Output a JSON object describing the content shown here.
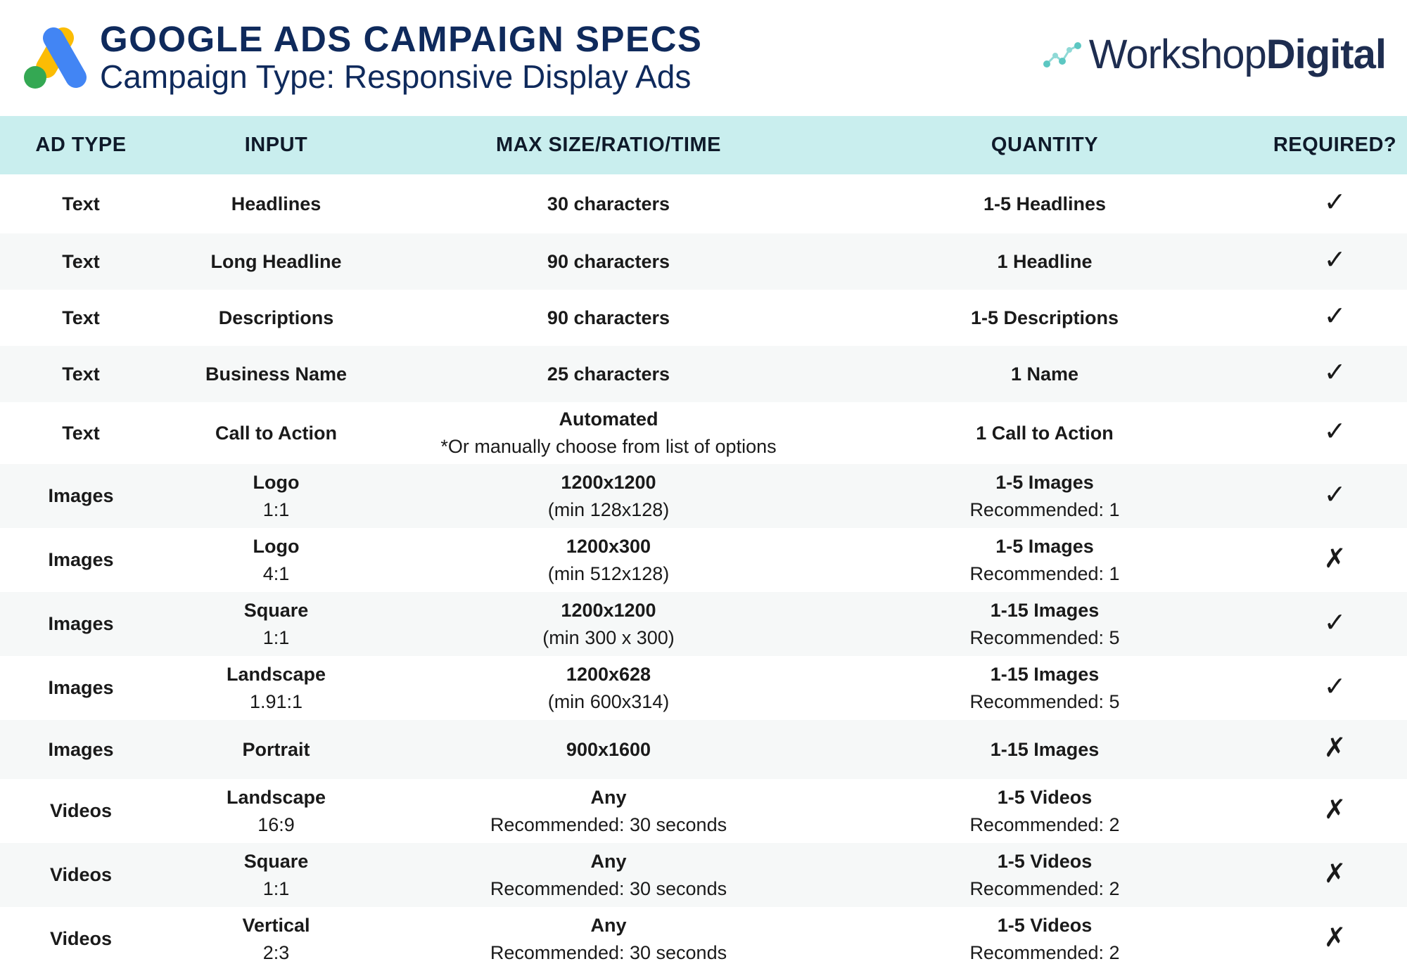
{
  "header": {
    "title": "GOOGLE ADS CAMPAIGN SPECS",
    "subtitle": "Campaign Type: Responsive Display Ads",
    "brand_light": "Workshop",
    "brand_bold": "Digital",
    "colors": {
      "navy": "#0f2a5c",
      "header_row": "#c9eeee",
      "ads_blue": "#4285f4",
      "ads_yellow": "#fbbc04",
      "ads_green": "#34a853"
    }
  },
  "table": {
    "columns": [
      "AD TYPE",
      "INPUT",
      "MAX SIZE/RATIO/TIME",
      "QUANTITY",
      "REQUIRED?"
    ],
    "rows": [
      {
        "ad_type": "Text",
        "input": "Headlines",
        "input_sub": "",
        "size": "30 characters",
        "size_sub": "",
        "qty": "1-5 Headlines",
        "qty_sub": "",
        "required": "✓"
      },
      {
        "ad_type": "Text",
        "input": "Long Headline",
        "input_sub": "",
        "size": "90 characters",
        "size_sub": "",
        "qty": "1 Headline",
        "qty_sub": "",
        "required": "✓"
      },
      {
        "ad_type": "Text",
        "input": "Descriptions",
        "input_sub": "",
        "size": "90 characters",
        "size_sub": "",
        "qty": "1-5 Descriptions",
        "qty_sub": "",
        "required": "✓"
      },
      {
        "ad_type": "Text",
        "input": "Business Name",
        "input_sub": "",
        "size": "25 characters",
        "size_sub": "",
        "qty": "1 Name",
        "qty_sub": "",
        "required": "✓"
      },
      {
        "ad_type": "Text",
        "input": "Call to Action",
        "input_sub": "",
        "size": "Automated",
        "size_sub": "*Or manually choose from list of options",
        "qty": "1 Call to Action",
        "qty_sub": "",
        "required": "✓"
      },
      {
        "ad_type": "Images",
        "input": "Logo",
        "input_sub": "1:1",
        "size": "1200x1200",
        "size_sub": "(min 128x128)",
        "qty": "1-5 Images",
        "qty_sub": "Recommended: 1",
        "required": "✓"
      },
      {
        "ad_type": "Images",
        "input": "Logo",
        "input_sub": "4:1",
        "size": "1200x300",
        "size_sub": "(min 512x128)",
        "qty": "1-5 Images",
        "qty_sub": "Recommended: 1",
        "required": "✗"
      },
      {
        "ad_type": "Images",
        "input": "Square",
        "input_sub": "1:1",
        "size": "1200x1200",
        "size_sub": "(min 300 x 300)",
        "qty": "1-15 Images",
        "qty_sub": "Recommended: 5",
        "required": "✓"
      },
      {
        "ad_type": "Images",
        "input": "Landscape",
        "input_sub": "1.91:1",
        "size": "1200x628",
        "size_sub": "(min 600x314)",
        "qty": "1-15 Images",
        "qty_sub": "Recommended: 5",
        "required": "✓"
      },
      {
        "ad_type": "Images",
        "input": "Portrait",
        "input_sub": "",
        "size": "900x1600",
        "size_sub": "",
        "qty": "1-15 Images",
        "qty_sub": "",
        "required": "✗"
      },
      {
        "ad_type": "Videos",
        "input": "Landscape",
        "input_sub": "16:9",
        "size": "Any",
        "size_sub": "Recommended: 30 seconds",
        "qty": "1-5 Videos",
        "qty_sub": "Recommended: 2",
        "required": "✗"
      },
      {
        "ad_type": "Videos",
        "input": "Square",
        "input_sub": "1:1",
        "size": "Any",
        "size_sub": "Recommended: 30 seconds",
        "qty": "1-5 Videos",
        "qty_sub": "Recommended: 2",
        "required": "✗"
      },
      {
        "ad_type": "Videos",
        "input": "Vertical",
        "input_sub": "2:3",
        "size": "Any",
        "size_sub": "Recommended: 30 seconds",
        "qty": "1-5 Videos",
        "qty_sub": "Recommended: 2",
        "required": "✗"
      }
    ]
  }
}
